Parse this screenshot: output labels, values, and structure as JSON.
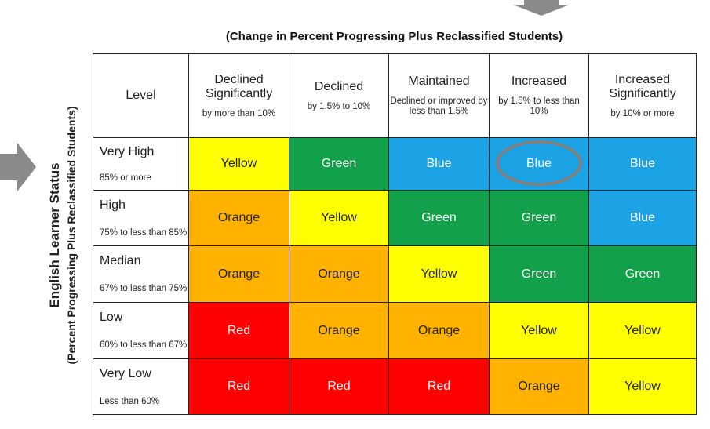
{
  "header": {
    "title": "(Change in Percent Progressing Plus Reclassified Students)"
  },
  "side_label": {
    "title": "English Learner Status",
    "subtitle": "(Percent Progressing Plus Reclassified Students)"
  },
  "table": {
    "corner": "Level",
    "columns": [
      {
        "title": "Declined Significantly",
        "sub": "by more than 10%"
      },
      {
        "title": "Declined",
        "sub": "by 1.5% to 10%"
      },
      {
        "title": "Maintained",
        "sub": "Declined or improved by less than 1.5%"
      },
      {
        "title": "Increased",
        "sub": "by 1.5% to less than 10%"
      },
      {
        "title": "Increased Significantly",
        "sub": "by 10% or more"
      }
    ],
    "rows": [
      {
        "title": "Very High",
        "sub": "85% or more",
        "cells": [
          {
            "label": "Yellow",
            "color": "#ffff00"
          },
          {
            "label": "Green",
            "color": "#12a04a"
          },
          {
            "label": "Blue",
            "color": "#1ba3e6"
          },
          {
            "label": "Blue",
            "color": "#1ba3e6"
          },
          {
            "label": "Blue",
            "color": "#1ba3e6"
          }
        ]
      },
      {
        "title": "High",
        "sub": "75% to less than 85%",
        "cells": [
          {
            "label": "Orange",
            "color": "#ffb300"
          },
          {
            "label": "Yellow",
            "color": "#ffff00"
          },
          {
            "label": "Green",
            "color": "#12a04a"
          },
          {
            "label": "Green",
            "color": "#12a04a"
          },
          {
            "label": "Blue",
            "color": "#1ba3e6"
          }
        ]
      },
      {
        "title": "Median",
        "sub": "67% to less than 75%",
        "cells": [
          {
            "label": "Orange",
            "color": "#ffb300"
          },
          {
            "label": "Orange",
            "color": "#ffb300"
          },
          {
            "label": "Yellow",
            "color": "#ffff00"
          },
          {
            "label": "Green",
            "color": "#12a04a"
          },
          {
            "label": "Green",
            "color": "#12a04a"
          }
        ]
      },
      {
        "title": "Low",
        "sub": "60% to less than 67%",
        "cells": [
          {
            "label": "Red",
            "color": "#ff0000"
          },
          {
            "label": "Orange",
            "color": "#ffb300"
          },
          {
            "label": "Orange",
            "color": "#ffb300"
          },
          {
            "label": "Yellow",
            "color": "#ffff00"
          },
          {
            "label": "Yellow",
            "color": "#ffff00"
          }
        ]
      },
      {
        "title": "Very Low",
        "sub": "Less than 60%",
        "cells": [
          {
            "label": "Red",
            "color": "#ff0000"
          },
          {
            "label": "Red",
            "color": "#ff0000"
          },
          {
            "label": "Red",
            "color": "#ff0000"
          },
          {
            "label": "Orange",
            "color": "#ffb300"
          },
          {
            "label": "Yellow",
            "color": "#ffff00"
          }
        ]
      }
    ]
  }
}
